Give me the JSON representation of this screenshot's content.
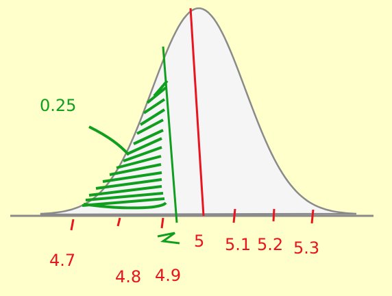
{
  "annotation": "0.25",
  "ticks": [
    "4.7",
    "4.8",
    "4.9",
    "5",
    "5.1",
    "5.2",
    "5.3"
  ]
}
